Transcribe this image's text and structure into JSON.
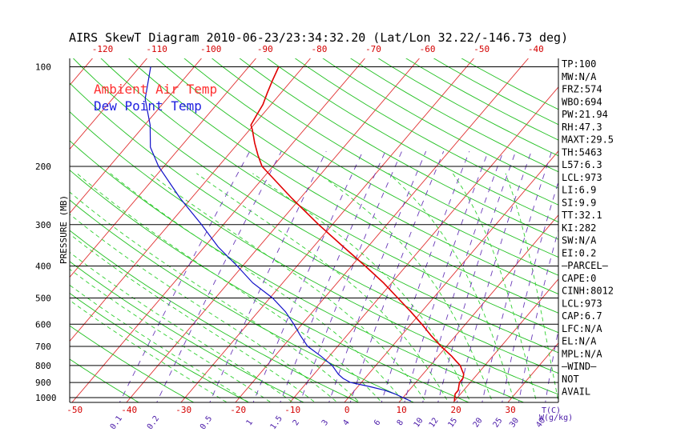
{
  "chart_data": {
    "type": "skewt",
    "title": "AIRS SkewT Diagram 2010-06-23/23:34:32.20 (Lat/Lon 32.22/-146.73 deg)",
    "ylabel": "PRESSURE (MB)",
    "xlabel": "T(C)",
    "mixing_ratio_label": "W(g/kg)",
    "legend": [
      {
        "label": "Ambient Air Temp",
        "color": "#e00000"
      },
      {
        "label": "Dew Point Temp",
        "color": "#1010c8"
      }
    ],
    "pressure_ticks": [
      100,
      200,
      300,
      400,
      500,
      600,
      700,
      800,
      900,
      1000
    ],
    "bottom_temp_ticks": [
      "-50",
      "-40",
      "-30",
      "-20",
      "-10",
      "0",
      "10",
      "20",
      "30"
    ],
    "top_temp_ticks": [
      "-120",
      "-110",
      "-100",
      "-90",
      "-80",
      "-70",
      "-60",
      "-50",
      "-40"
    ],
    "mixing_ratio_ticks": [
      "0.1",
      "0.2",
      "0.5",
      "1",
      "1.5",
      "2",
      "3",
      "4",
      "6",
      "8",
      "10",
      "12",
      "15",
      "20",
      "25",
      "30",
      "40"
    ],
    "temperature_profile": [
      {
        "p": 1025,
        "t": 20.0
      },
      {
        "p": 1000,
        "t": 19.5
      },
      {
        "p": 975,
        "t": 19.0
      },
      {
        "p": 950,
        "t": 19.0
      },
      {
        "p": 925,
        "t": 18.5
      },
      {
        "p": 900,
        "t": 18.0
      },
      {
        "p": 875,
        "t": 18.0
      },
      {
        "p": 850,
        "t": 17.5
      },
      {
        "p": 825,
        "t": 16.5
      },
      {
        "p": 800,
        "t": 15.5
      },
      {
        "p": 775,
        "t": 14.0
      },
      {
        "p": 750,
        "t": 12.5
      },
      {
        "p": 700,
        "t": 9.0
      },
      {
        "p": 650,
        "t": 5.5
      },
      {
        "p": 600,
        "t": 2.0
      },
      {
        "p": 550,
        "t": -2.0
      },
      {
        "p": 500,
        "t": -6.5
      },
      {
        "p": 450,
        "t": -11.5
      },
      {
        "p": 400,
        "t": -17.5
      },
      {
        "p": 350,
        "t": -24.5
      },
      {
        "p": 300,
        "t": -32.5
      },
      {
        "p": 250,
        "t": -41.5
      },
      {
        "p": 200,
        "t": -52.0
      },
      {
        "p": 185,
        "t": -54.5
      },
      {
        "p": 170,
        "t": -57.0
      },
      {
        "p": 155,
        "t": -59.5
      },
      {
        "p": 150,
        "t": -60.5
      },
      {
        "p": 140,
        "t": -61.0
      },
      {
        "p": 130,
        "t": -61.5
      },
      {
        "p": 120,
        "t": -62.5
      },
      {
        "p": 110,
        "t": -63.5
      },
      {
        "p": 100,
        "t": -64.5
      }
    ],
    "dewpoint_profile": [
      {
        "p": 1025,
        "t": 12.0
      },
      {
        "p": 1000,
        "t": 10.0
      },
      {
        "p": 975,
        "t": 8.0
      },
      {
        "p": 950,
        "t": 5.5
      },
      {
        "p": 925,
        "t": 2.0
      },
      {
        "p": 900,
        "t": -2.0
      },
      {
        "p": 875,
        "t": -4.0
      },
      {
        "p": 850,
        "t": -5.5
      },
      {
        "p": 800,
        "t": -8.0
      },
      {
        "p": 750,
        "t": -11.5
      },
      {
        "p": 700,
        "t": -15.5
      },
      {
        "p": 650,
        "t": -18.5
      },
      {
        "p": 600,
        "t": -21.5
      },
      {
        "p": 550,
        "t": -25.0
      },
      {
        "p": 500,
        "t": -29.5
      },
      {
        "p": 450,
        "t": -35.5
      },
      {
        "p": 400,
        "t": -41.0
      },
      {
        "p": 350,
        "t": -47.5
      },
      {
        "p": 300,
        "t": -54.0
      },
      {
        "p": 250,
        "t": -62.0
      },
      {
        "p": 200,
        "t": -71.0
      },
      {
        "p": 175,
        "t": -75.5
      },
      {
        "p": 150,
        "t": -79.0
      },
      {
        "p": 125,
        "t": -84.0
      },
      {
        "p": 100,
        "t": -88.0
      }
    ]
  },
  "indices": [
    "TP:100",
    "MW:N/A",
    "FRZ:574",
    "WBO:694",
    "PW:21.94",
    "RH:47.3",
    "MAXT:29.5",
    "TH:5463",
    "L57:6.3",
    "LCL:973",
    "LI:6.9",
    "SI:9.9",
    "TT:32.1",
    "KI:282",
    "SW:N/A",
    "EI:0.2",
    "—PARCEL—",
    "CAPE:0",
    "CINH:8012",
    "LCL:973",
    "CAP:6.7",
    "LFC:N/A",
    "EL:N/A",
    "MPL:N/A",
    "—WIND—",
    "NOT",
    "AVAIL"
  ],
  "colors": {
    "temp_line": "#e00000",
    "dew_line": "#1010c8",
    "isotherm": "#e03030",
    "dry_adiabat": "#20c020",
    "moist_adiabat": "#30d030",
    "mixing_ratio": "#6a3ab8",
    "legend_temp": "#ff3030",
    "legend_dew": "#2020e0"
  }
}
